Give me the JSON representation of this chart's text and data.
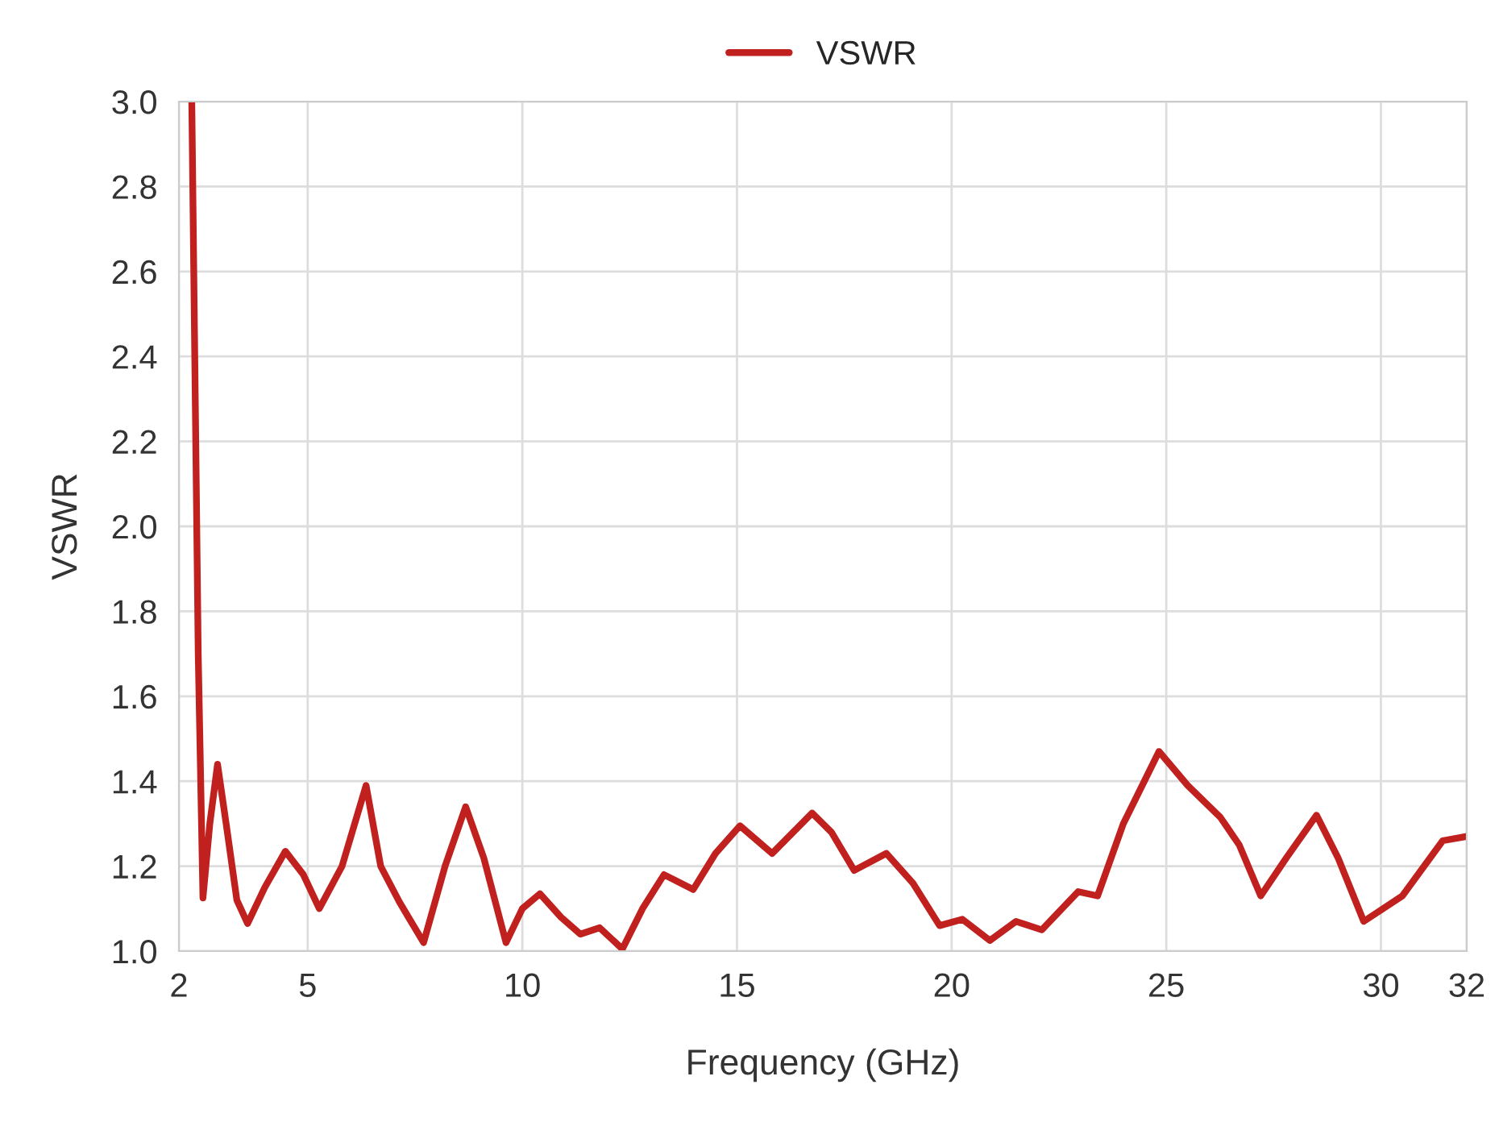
{
  "chart_data": {
    "type": "line",
    "xlabel": "Frequency (GHz)",
    "ylabel": "VSWR",
    "x": [
      2.3,
      2.45,
      2.56,
      2.72,
      2.9,
      3.1,
      3.35,
      3.6,
      4.0,
      4.48,
      4.9,
      5.27,
      5.8,
      6.36,
      6.7,
      7.14,
      7.7,
      8.2,
      8.68,
      9.1,
      9.62,
      10.0,
      10.41,
      10.9,
      11.35,
      11.8,
      12.33,
      12.8,
      13.3,
      13.98,
      14.5,
      15.07,
      15.82,
      16.75,
      17.2,
      17.73,
      18.48,
      19.1,
      19.72,
      20.25,
      20.89,
      21.5,
      22.1,
      22.95,
      23.4,
      24.0,
      24.83,
      25.5,
      26.26,
      26.7,
      27.2,
      27.8,
      28.5,
      29.0,
      29.6,
      30.5,
      31.44,
      32
    ],
    "series": [
      {
        "name": "VSWR",
        "color": "#c0201e",
        "values": [
          3.0,
          1.7,
          1.125,
          1.3,
          1.44,
          1.3,
          1.12,
          1.065,
          1.15,
          1.235,
          1.18,
          1.1,
          1.2,
          1.39,
          1.2,
          1.115,
          1.02,
          1.2,
          1.34,
          1.22,
          1.02,
          1.1,
          1.135,
          1.08,
          1.04,
          1.055,
          1.005,
          1.1,
          1.18,
          1.145,
          1.23,
          1.295,
          1.23,
          1.325,
          1.28,
          1.19,
          1.23,
          1.16,
          1.06,
          1.075,
          1.025,
          1.07,
          1.05,
          1.14,
          1.13,
          1.3,
          1.47,
          1.39,
          1.315,
          1.25,
          1.13,
          1.22,
          1.32,
          1.22,
          1.07,
          1.13,
          1.26,
          1.27
        ]
      }
    ],
    "xlim": [
      2,
      32
    ],
    "xticks": [
      2,
      5,
      10,
      15,
      20,
      25,
      30,
      32
    ],
    "ylim": [
      1.0,
      3.0
    ],
    "yticks": [
      {
        "value": 1.0,
        "label": "1.0"
      },
      {
        "value": 1.2,
        "label": "1.2"
      },
      {
        "value": 1.4,
        "label": "1.4"
      },
      {
        "value": 1.6,
        "label": "1.6"
      },
      {
        "value": 1.8,
        "label": "1.8"
      },
      {
        "value": 2.0,
        "label": "2.0"
      },
      {
        "value": 2.2,
        "label": "2.2"
      },
      {
        "value": 2.4,
        "label": "2.4"
      },
      {
        "value": 2.6,
        "label": "2.6"
      },
      {
        "value": 2.8,
        "label": "2.8"
      },
      {
        "value": 3.0,
        "label": "3.0"
      }
    ],
    "grid": true,
    "legend": "top",
    "marker": "none",
    "line_style": "solid"
  }
}
